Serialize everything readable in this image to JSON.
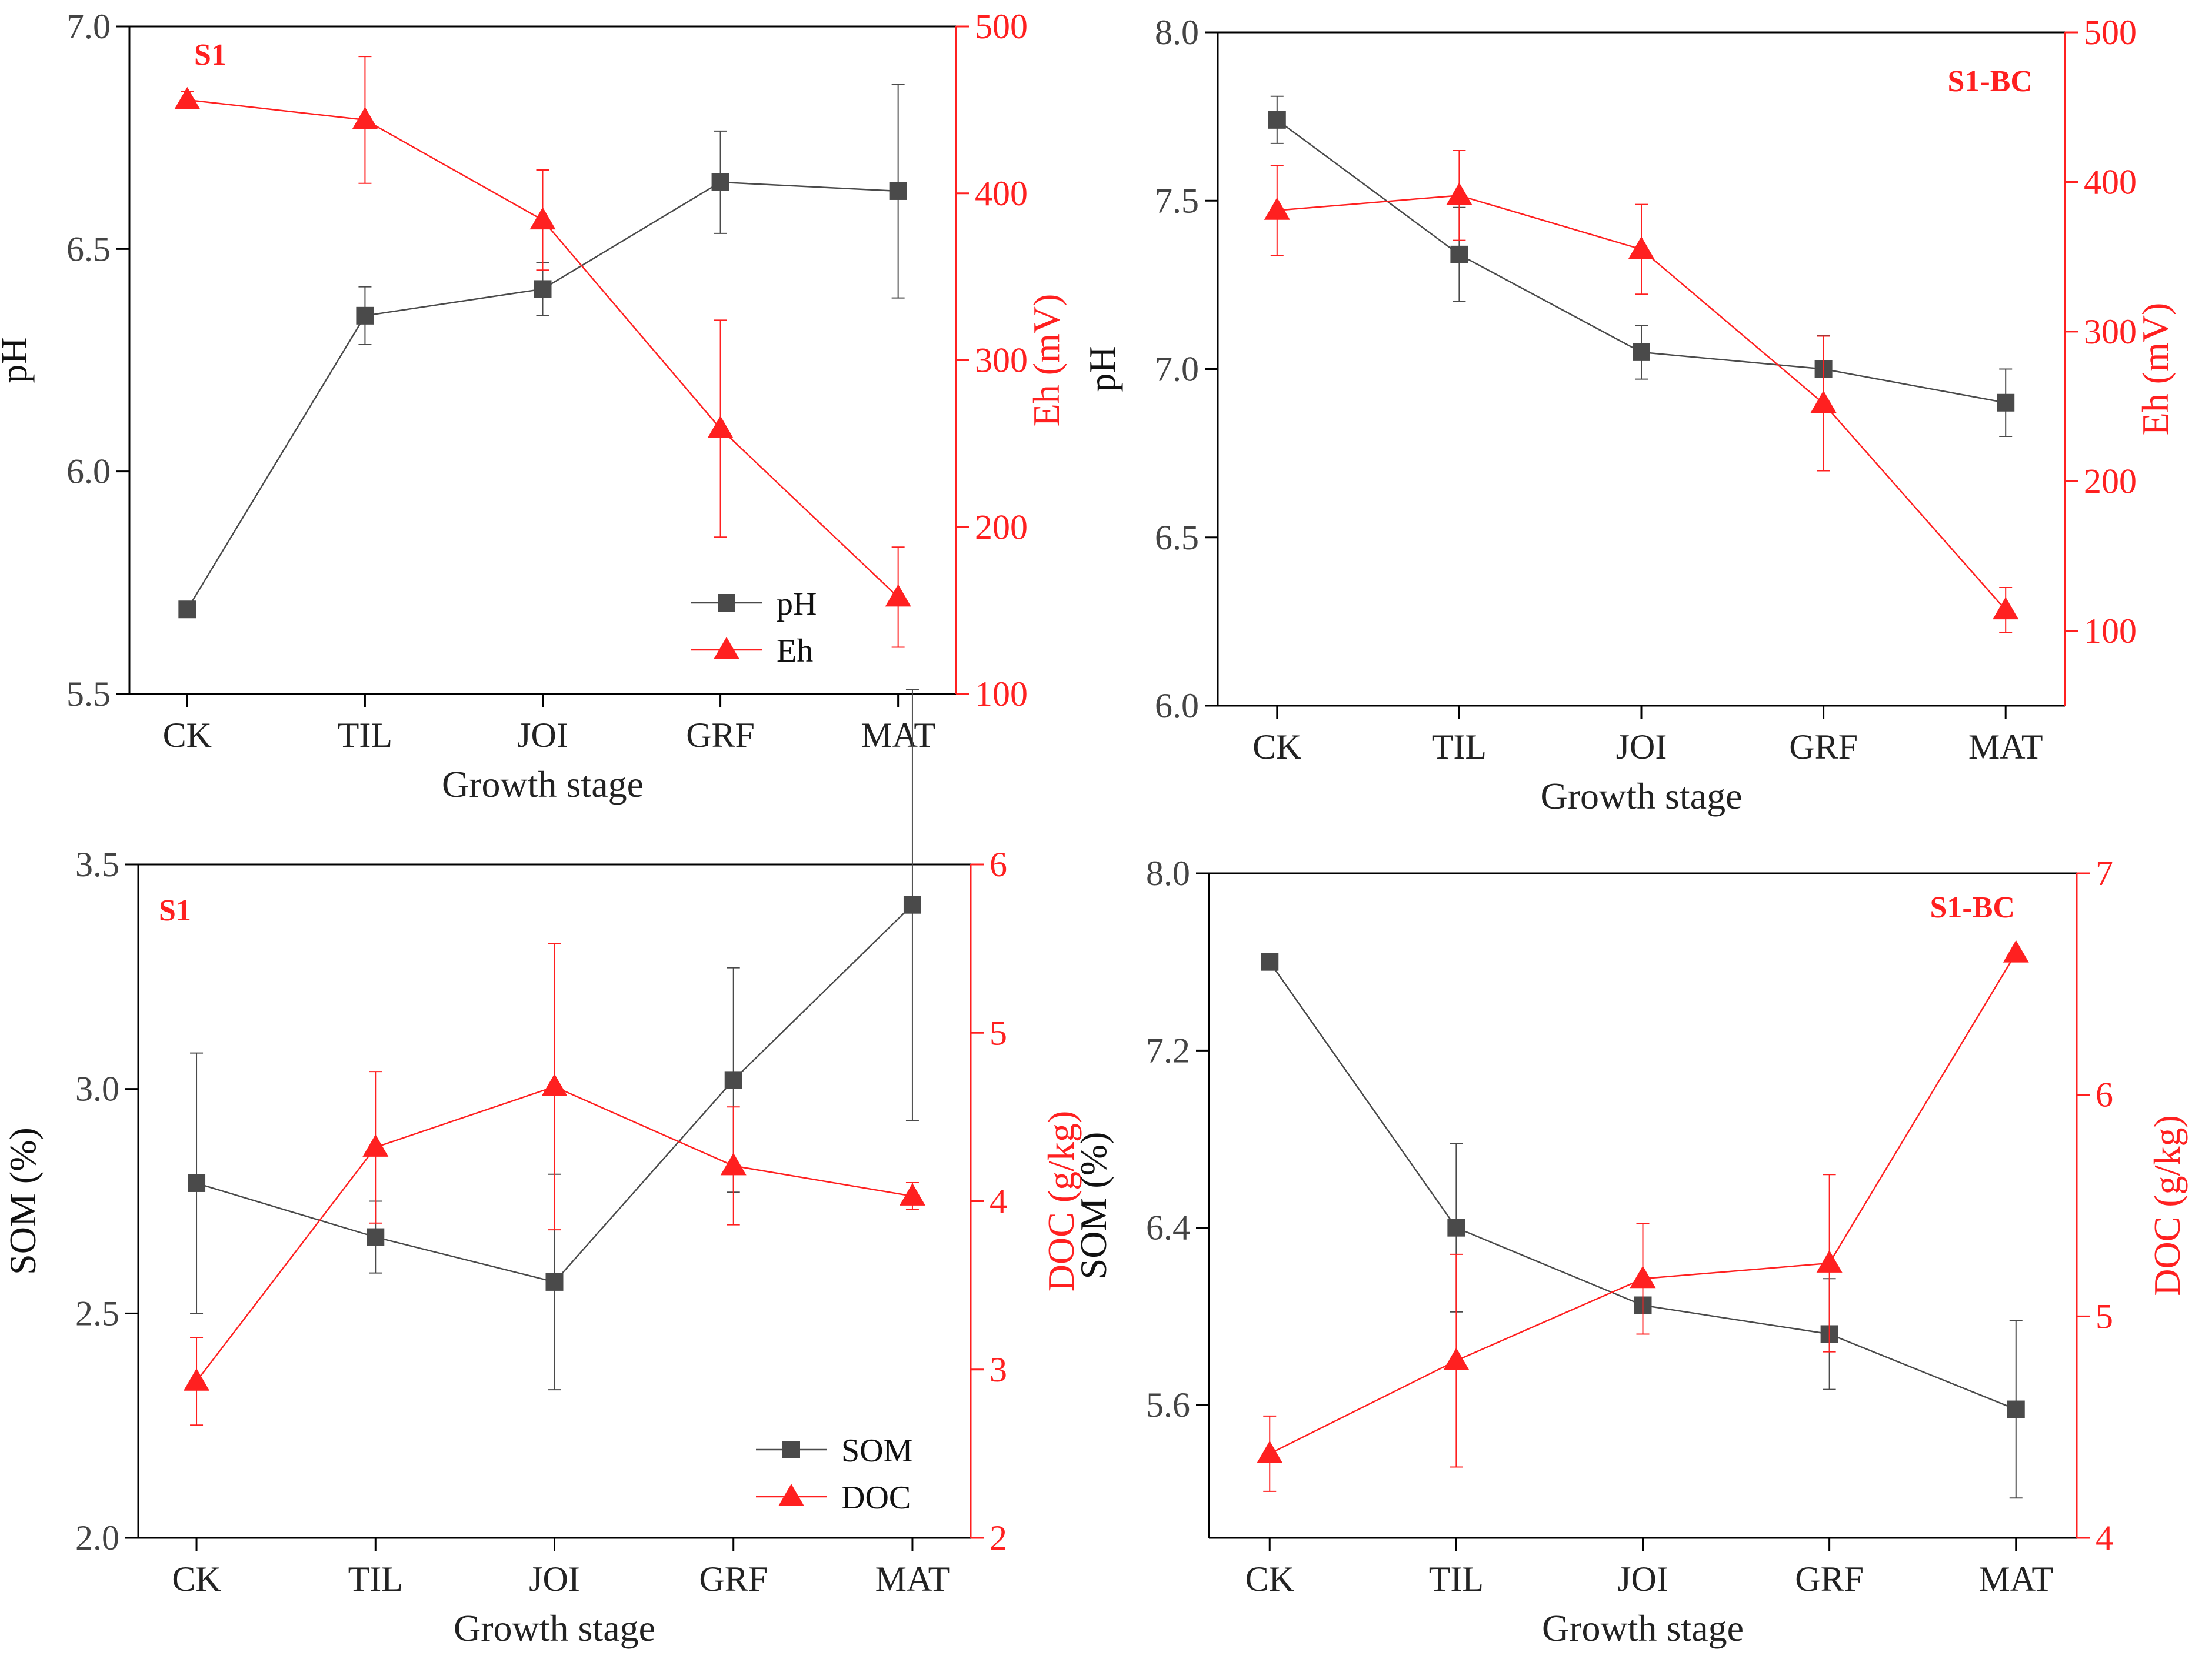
{
  "colors": {
    "primary": "#4a4a4a",
    "secondary": "#ff2020",
    "axis": "#000000"
  },
  "chart_data": [
    {
      "type": "line",
      "panel_label": "S1",
      "categories": [
        "CK",
        "TIL",
        "JOI",
        "GRF",
        "MAT"
      ],
      "xlabel": "Growth stage",
      "y_left": {
        "label": "pH",
        "ylim": [
          5.5,
          7.0
        ],
        "ticks": [
          "5.5",
          "6.0",
          "6.5",
          "7.0"
        ]
      },
      "y_right": {
        "label": "Eh (mV)",
        "ylim": [
          100,
          500
        ],
        "ticks": [
          "100",
          "200",
          "300",
          "400",
          "500"
        ]
      },
      "series": [
        {
          "name": "pH",
          "axis": "left",
          "marker": "square",
          "values": [
            5.69,
            6.35,
            6.41,
            6.65,
            6.63
          ],
          "errors": [
            0.0,
            0.065,
            0.06,
            0.115,
            0.24
          ]
        },
        {
          "name": "Eh",
          "axis": "right",
          "marker": "triangle",
          "values": [
            456,
            444,
            384,
            259,
            158
          ],
          "errors": [
            5,
            38,
            30,
            65,
            30
          ]
        }
      ],
      "legend": {
        "show": true,
        "position": "bottom-right"
      }
    },
    {
      "type": "line",
      "panel_label": "S1-BC",
      "categories": [
        "CK",
        "TIL",
        "JOI",
        "GRF",
        "MAT"
      ],
      "xlabel": "Growth stage",
      "y_left": {
        "label": "pH",
        "ylim": [
          6.0,
          8.0
        ],
        "ticks": [
          "6.0",
          "6.5",
          "7.0",
          "7.5",
          "8.0"
        ]
      },
      "y_right": {
        "label": "Eh (mV)",
        "ylim": [
          50,
          500
        ],
        "ticks": [
          "100",
          "200",
          "300",
          "400",
          "500"
        ]
      },
      "series": [
        {
          "name": "pH",
          "axis": "left",
          "marker": "square",
          "values": [
            7.74,
            7.34,
            7.05,
            7.0,
            6.9
          ],
          "errors": [
            0.07,
            0.14,
            0.08,
            0.1,
            0.1
          ]
        },
        {
          "name": "Eh",
          "axis": "right",
          "marker": "triangle",
          "values": [
            381,
            391,
            355,
            252,
            114
          ],
          "errors": [
            30,
            30,
            30,
            45,
            15
          ]
        }
      ],
      "legend": {
        "show": false
      }
    },
    {
      "type": "line",
      "panel_label": "S1",
      "categories": [
        "CK",
        "TIL",
        "JOI",
        "GRF",
        "MAT"
      ],
      "xlabel": "Growth stage",
      "y_left": {
        "label": "SOM (%)",
        "ylim": [
          2.0,
          3.5
        ],
        "ticks": [
          "2.0",
          "2.5",
          "3.0",
          "3.5"
        ]
      },
      "y_right": {
        "label": "DOC (g/kg)",
        "ylim": [
          2,
          6
        ],
        "ticks": [
          "2",
          "3",
          "4",
          "5",
          "6"
        ]
      },
      "series": [
        {
          "name": "SOM",
          "axis": "left",
          "marker": "square",
          "values": [
            2.79,
            2.67,
            2.57,
            3.02,
            3.41
          ],
          "errors": [
            0.29,
            0.08,
            0.24,
            0.25,
            0.48
          ]
        },
        {
          "name": "DOC",
          "axis": "right",
          "marker": "triangle",
          "values": [
            2.93,
            4.32,
            4.68,
            4.21,
            4.03
          ],
          "errors": [
            0.26,
            0.45,
            0.85,
            0.35,
            0.08
          ]
        }
      ],
      "legend": {
        "show": true,
        "position": "bottom-right"
      }
    },
    {
      "type": "line",
      "panel_label": "S1-BC",
      "categories": [
        "CK",
        "TIL",
        "JOI",
        "GRF",
        "MAT"
      ],
      "xlabel": "Growth stage",
      "y_left": {
        "label": "SOM (%)",
        "ylim": [
          5.0,
          8.0
        ],
        "ticks": [
          "5.6",
          "6.4",
          "7.2",
          "8.0"
        ]
      },
      "y_right": {
        "label": "DOC (g/kg)",
        "ylim": [
          4,
          7
        ],
        "ticks": [
          "4",
          "5",
          "6",
          "7"
        ]
      },
      "series": [
        {
          "name": "SOM",
          "axis": "left",
          "marker": "square",
          "values": [
            7.6,
            6.4,
            6.05,
            5.92,
            5.58
          ],
          "errors": [
            0.0,
            0.38,
            0.0,
            0.25,
            0.4
          ]
        },
        {
          "name": "DOC",
          "axis": "right",
          "marker": "triangle",
          "values": [
            4.38,
            4.8,
            5.17,
            5.24,
            6.64
          ],
          "errors": [
            0.17,
            0.48,
            0.25,
            0.4,
            0.0
          ]
        }
      ],
      "legend": {
        "show": false
      }
    }
  ]
}
